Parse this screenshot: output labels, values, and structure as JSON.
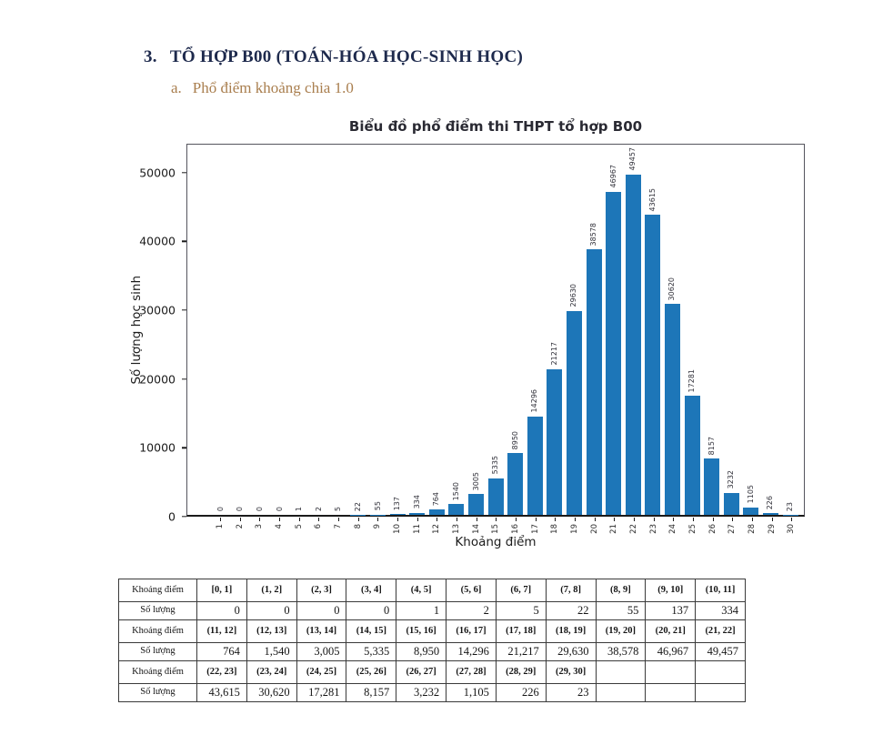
{
  "heading": {
    "number": "3.",
    "text": "TỔ HỢP B00 (TOÁN-HÓA HỌC-SINH HỌC)"
  },
  "subheading": {
    "number": "a.",
    "text": "Phổ điểm khoảng chia 1.0"
  },
  "chart_data": {
    "type": "bar",
    "title": "Biểu đồ phổ điểm thi THPT tổ hợp B00",
    "xlabel": "Khoảng điểm",
    "ylabel": "Số lượng học sinh",
    "x_tick_labels": [
      "1",
      "2",
      "3",
      "4",
      "5",
      "6",
      "7",
      "8",
      "9",
      "10",
      "11",
      "12",
      "13",
      "14",
      "15",
      "16",
      "17",
      "18",
      "19",
      "20",
      "21",
      "22",
      "23",
      "24",
      "25",
      "26",
      "27",
      "28",
      "29",
      "30"
    ],
    "categories": [
      "[0, 1]",
      "(1, 2]",
      "(2, 3]",
      "(3, 4]",
      "(4, 5]",
      "(5, 6]",
      "(6, 7]",
      "(7, 8]",
      "(8, 9]",
      "(9, 10]",
      "(10, 11]",
      "(11, 12]",
      "(12, 13]",
      "(13, 14]",
      "(14, 15]",
      "(15, 16]",
      "(16, 17]",
      "(17, 18]",
      "(18, 19]",
      "(19, 20]",
      "(20, 21]",
      "(21, 22]",
      "(22, 23]",
      "(23, 24]",
      "(24, 25]",
      "(25, 26]",
      "(26, 27]",
      "(27, 28]",
      "(28, 29]",
      "(29, 30]"
    ],
    "values": [
      0,
      0,
      0,
      0,
      1,
      2,
      5,
      22,
      55,
      137,
      334,
      764,
      1540,
      3005,
      5335,
      8950,
      14296,
      21217,
      29630,
      38578,
      46967,
      49457,
      43615,
      30620,
      17281,
      8157,
      3232,
      1105,
      226,
      23
    ],
    "bar_value_labels": [
      "0",
      "0",
      "0",
      "0",
      "1",
      "2",
      "5",
      "22",
      "55",
      "137",
      "334",
      "764",
      "1540",
      "3005",
      "5335",
      "8950",
      "14296",
      "21217",
      "29630",
      "38578",
      "46967",
      "49457",
      "43615",
      "30620",
      "17281",
      "8157",
      "3232",
      "1105",
      "226",
      "23"
    ],
    "y_ticks": [
      0,
      10000,
      20000,
      30000,
      40000,
      50000
    ],
    "ylim": [
      0,
      54200
    ],
    "bar_color": "#1d76b8",
    "grid": false,
    "legend": null
  },
  "table": {
    "row_header_interval": "Khoảng điểm",
    "row_header_count": "Số lượng",
    "rows": [
      {
        "intervals": [
          "[0, 1]",
          "(1, 2]",
          "(2, 3]",
          "(3, 4]",
          "(4, 5]",
          "(5, 6]",
          "(6, 7]",
          "(7, 8]",
          "(8, 9]",
          "(9, 10]",
          "(10, 11]"
        ],
        "counts": [
          "0",
          "0",
          "0",
          "0",
          "1",
          "2",
          "5",
          "22",
          "55",
          "137",
          "334"
        ]
      },
      {
        "intervals": [
          "(11, 12]",
          "(12, 13]",
          "(13, 14]",
          "(14, 15]",
          "(15, 16]",
          "(16, 17]",
          "(17, 18]",
          "(18, 19]",
          "(19, 20]",
          "(20, 21]",
          "(21, 22]"
        ],
        "counts": [
          "764",
          "1,540",
          "3,005",
          "5,335",
          "8,950",
          "14,296",
          "21,217",
          "29,630",
          "38,578",
          "46,967",
          "49,457"
        ]
      },
      {
        "intervals": [
          "(22, 23]",
          "(23, 24]",
          "(24, 25]",
          "(25, 26]",
          "(26, 27]",
          "(27, 28]",
          "(28, 29]",
          "(29, 30]",
          "",
          "",
          ""
        ],
        "counts": [
          "43,615",
          "30,620",
          "17,281",
          "8,157",
          "3,232",
          "1,105",
          "226",
          "23",
          "",
          "",
          ""
        ]
      }
    ]
  },
  "colors": {
    "heading": "#1e2a4d",
    "subheading": "#a97e4e",
    "bar": "#1d76b8",
    "axis_text": "#1c1c1c"
  }
}
